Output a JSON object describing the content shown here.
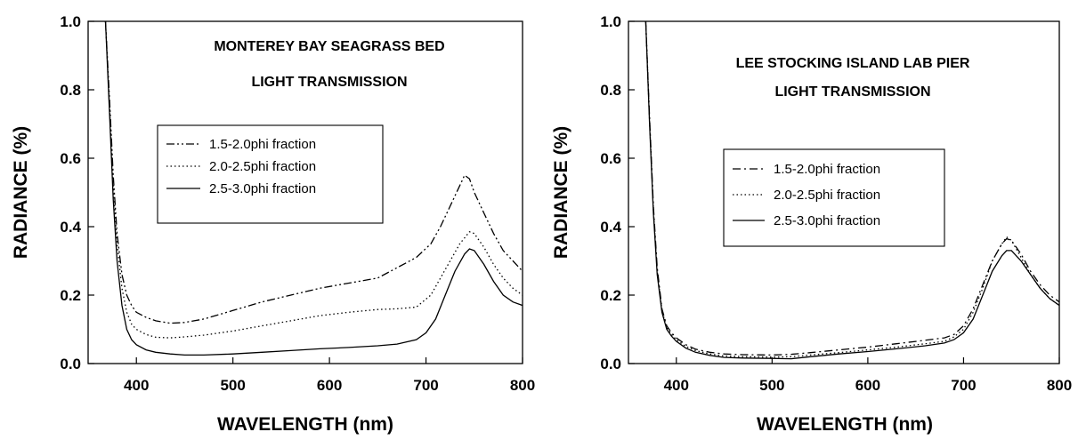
{
  "chart_data": [
    {
      "type": "line",
      "title": [
        "MONTEREY BAY SEAGRASS BED",
        "LIGHT TRANSMISSION"
      ],
      "xlabel": "WAVELENGTH (nm)",
      "ylabel": "RADIANCE (%)",
      "xlim": [
        350,
        800
      ],
      "ylim": [
        0.0,
        1.0
      ],
      "xticks": [
        "400",
        "500",
        "600",
        "700",
        "800"
      ],
      "yticks": [
        "0.0",
        "0.2",
        "0.4",
        "0.6",
        "0.8",
        "1.0"
      ],
      "legend_position": "center-left",
      "series": [
        {
          "name": "1.5-2.0phi fraction",
          "line_style": "dash-dot-dot",
          "x": [
            368,
            372,
            376,
            380,
            385,
            390,
            395,
            400,
            410,
            420,
            435,
            450,
            470,
            500,
            530,
            560,
            590,
            620,
            650,
            670,
            690,
            705,
            715,
            725,
            735,
            740,
            745,
            750,
            760,
            770,
            780,
            790,
            800
          ],
          "y": [
            1.0,
            0.78,
            0.55,
            0.38,
            0.26,
            0.2,
            0.17,
            0.15,
            0.135,
            0.125,
            0.118,
            0.12,
            0.13,
            0.155,
            0.18,
            0.2,
            0.22,
            0.235,
            0.25,
            0.28,
            0.31,
            0.35,
            0.4,
            0.46,
            0.52,
            0.55,
            0.54,
            0.5,
            0.44,
            0.38,
            0.33,
            0.3,
            0.27
          ]
        },
        {
          "name": "2.0-2.5phi fraction",
          "line_style": "dotted",
          "x": [
            368,
            372,
            376,
            380,
            385,
            390,
            395,
            400,
            410,
            420,
            435,
            450,
            470,
            500,
            530,
            560,
            590,
            620,
            650,
            670,
            690,
            705,
            715,
            725,
            735,
            745,
            750,
            760,
            770,
            780,
            790,
            800
          ],
          "y": [
            1.0,
            0.76,
            0.52,
            0.35,
            0.22,
            0.15,
            0.115,
            0.1,
            0.085,
            0.077,
            0.075,
            0.078,
            0.083,
            0.095,
            0.11,
            0.125,
            0.14,
            0.15,
            0.158,
            0.16,
            0.165,
            0.2,
            0.25,
            0.3,
            0.35,
            0.385,
            0.38,
            0.34,
            0.29,
            0.25,
            0.22,
            0.2
          ]
        },
        {
          "name": "2.5-3.0phi fraction",
          "line_style": "solid",
          "x": [
            368,
            372,
            376,
            380,
            385,
            390,
            395,
            400,
            410,
            420,
            435,
            450,
            470,
            500,
            530,
            560,
            590,
            620,
            650,
            670,
            690,
            700,
            710,
            720,
            730,
            740,
            745,
            750,
            760,
            770,
            780,
            790,
            800
          ],
          "y": [
            1.0,
            0.74,
            0.48,
            0.3,
            0.17,
            0.1,
            0.07,
            0.055,
            0.04,
            0.033,
            0.028,
            0.025,
            0.025,
            0.028,
            0.033,
            0.038,
            0.043,
            0.047,
            0.052,
            0.057,
            0.07,
            0.09,
            0.13,
            0.2,
            0.27,
            0.32,
            0.335,
            0.33,
            0.29,
            0.24,
            0.2,
            0.18,
            0.17
          ]
        }
      ]
    },
    {
      "type": "line",
      "title": [
        "LEE STOCKING ISLAND LAB PIER",
        "LIGHT TRANSMISSION"
      ],
      "xlabel": "WAVELENGTH (nm)",
      "ylabel": "RADIANCE (%)",
      "xlim": [
        350,
        800
      ],
      "ylim": [
        0.0,
        1.0
      ],
      "xticks": [
        "400",
        "500",
        "600",
        "700",
        "800"
      ],
      "yticks": [
        "0.0",
        "0.2",
        "0.4",
        "0.6",
        "0.8",
        "1.0"
      ],
      "legend_position": "center-left",
      "series": [
        {
          "name": "1.5-2.0phi fraction",
          "line_style": "dash-dot",
          "x": [
            368,
            372,
            376,
            380,
            385,
            390,
            395,
            400,
            410,
            420,
            435,
            450,
            470,
            500,
            520,
            540,
            570,
            600,
            630,
            660,
            680,
            690,
            700,
            710,
            720,
            730,
            740,
            745,
            750,
            760,
            770,
            780,
            790,
            800
          ],
          "y": [
            1.0,
            0.72,
            0.46,
            0.28,
            0.16,
            0.11,
            0.09,
            0.075,
            0.055,
            0.042,
            0.033,
            0.028,
            0.026,
            0.025,
            0.027,
            0.032,
            0.04,
            0.048,
            0.058,
            0.068,
            0.075,
            0.085,
            0.11,
            0.16,
            0.23,
            0.3,
            0.35,
            0.365,
            0.36,
            0.32,
            0.27,
            0.23,
            0.2,
            0.18
          ]
        },
        {
          "name": "2.0-2.5phi fraction",
          "line_style": "dotted",
          "x": [
            368,
            372,
            376,
            380,
            385,
            390,
            395,
            400,
            410,
            420,
            435,
            450,
            470,
            500,
            520,
            540,
            570,
            600,
            630,
            660,
            680,
            690,
            700,
            710,
            720,
            730,
            740,
            745,
            750,
            760,
            770,
            780,
            790,
            800
          ],
          "y": [
            1.0,
            0.71,
            0.45,
            0.27,
            0.155,
            0.105,
            0.085,
            0.07,
            0.05,
            0.038,
            0.028,
            0.022,
            0.02,
            0.019,
            0.02,
            0.025,
            0.032,
            0.04,
            0.048,
            0.058,
            0.065,
            0.078,
            0.1,
            0.15,
            0.22,
            0.3,
            0.35,
            0.37,
            0.36,
            0.31,
            0.26,
            0.22,
            0.19,
            0.17
          ]
        },
        {
          "name": "2.5-3.0phi fraction",
          "line_style": "solid",
          "x": [
            368,
            372,
            376,
            380,
            385,
            390,
            395,
            400,
            410,
            420,
            435,
            450,
            470,
            500,
            520,
            540,
            570,
            600,
            630,
            660,
            680,
            690,
            700,
            710,
            720,
            730,
            740,
            745,
            750,
            760,
            770,
            780,
            790,
            800
          ],
          "y": [
            1.0,
            0.7,
            0.44,
            0.26,
            0.15,
            0.1,
            0.08,
            0.065,
            0.045,
            0.033,
            0.024,
            0.018,
            0.016,
            0.015,
            0.014,
            0.02,
            0.028,
            0.035,
            0.043,
            0.052,
            0.06,
            0.07,
            0.09,
            0.13,
            0.2,
            0.27,
            0.315,
            0.33,
            0.33,
            0.3,
            0.26,
            0.22,
            0.19,
            0.17
          ]
        }
      ]
    }
  ]
}
